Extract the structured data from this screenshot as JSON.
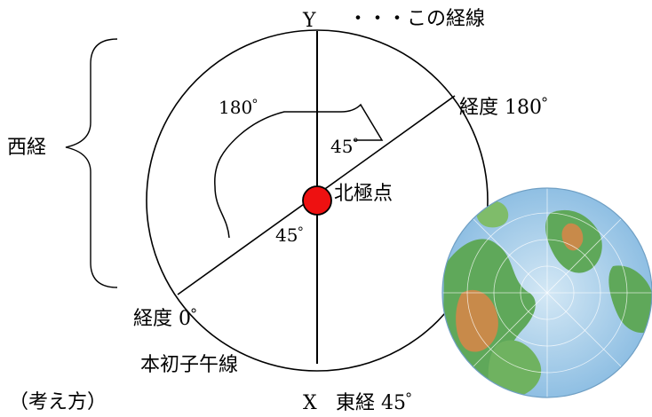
{
  "labels": {
    "y_axis": "Y",
    "this_meridian": "・・・この経線",
    "angle_180_left": "180゜",
    "longitude_180": "経度 180゜",
    "angle_45_upper": "45゜",
    "west_longitude": "西経",
    "north_pole": "北極点",
    "angle_45_lower": "45゜",
    "longitude_0": "経度 0゜",
    "prime_meridian": "本初子午線",
    "approach": "（考え方）",
    "x_axis": "X",
    "east_longitude_45": "東経 45゜"
  },
  "colors": {
    "line": "#000000",
    "pole_fill": "#ee1111",
    "ocean": "#a9cde9",
    "land_green": "#5fa85a",
    "land_brown": "#c88a4a"
  },
  "icons": {
    "globe": "north-polar-globe-icon"
  }
}
